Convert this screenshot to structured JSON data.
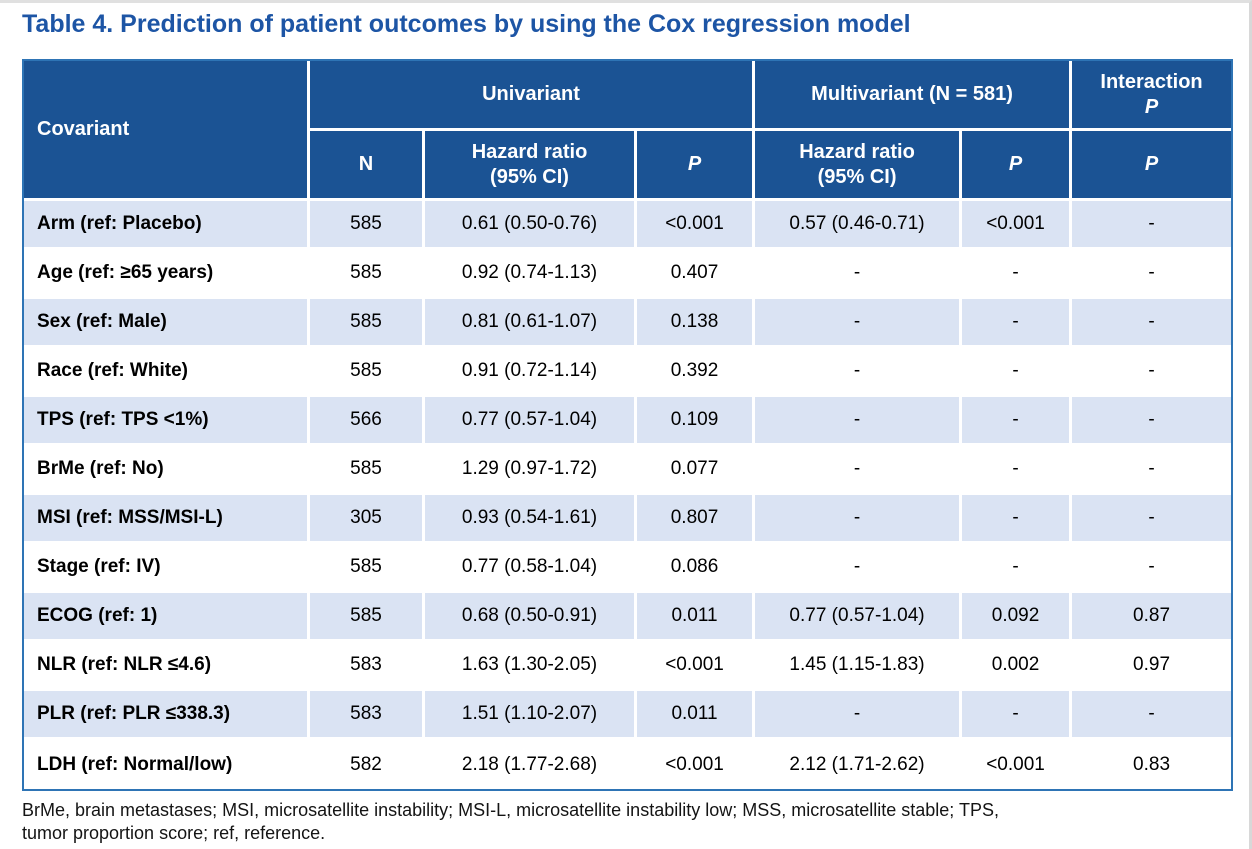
{
  "title": "Table 4. Prediction of patient outcomes by using the Cox regression model",
  "colors": {
    "header_background": "#1b5394",
    "table_border": "#2e74b5",
    "alt_row_background": "#dae3f3",
    "title_text": "#1d55a5",
    "header_text": "#ffffff",
    "body_text": "#000000"
  },
  "table": {
    "header": {
      "covariant": "Covariant",
      "univariant": "Univariant",
      "multivariant": "Multivariant (N = 581)",
      "interaction_line1": "Interaction",
      "interaction_p": "P",
      "sub": {
        "n": "N",
        "hazard_ratio": "Hazard ratio\n(95% CI)",
        "p": "P"
      }
    },
    "rows": [
      {
        "covariant": "Arm (ref: Placebo)",
        "n": "585",
        "uni_hr": "0.61 (0.50-0.76)",
        "uni_p": "<0.001",
        "multi_hr": "0.57 (0.46-0.71)",
        "multi_p": "<0.001",
        "int_p": "-"
      },
      {
        "covariant": "Age (ref: ≥65 years)",
        "n": "585",
        "uni_hr": "0.92 (0.74-1.13)",
        "uni_p": "0.407",
        "multi_hr": "-",
        "multi_p": "-",
        "int_p": "-"
      },
      {
        "covariant": "Sex (ref: Male)",
        "n": "585",
        "uni_hr": "0.81 (0.61-1.07)",
        "uni_p": "0.138",
        "multi_hr": "-",
        "multi_p": "-",
        "int_p": "-"
      },
      {
        "covariant": "Race (ref: White)",
        "n": "585",
        "uni_hr": "0.91 (0.72-1.14)",
        "uni_p": "0.392",
        "multi_hr": "-",
        "multi_p": "-",
        "int_p": "-"
      },
      {
        "covariant": "TPS (ref: TPS <1%)",
        "n": "566",
        "uni_hr": "0.77 (0.57-1.04)",
        "uni_p": "0.109",
        "multi_hr": "-",
        "multi_p": "-",
        "int_p": "-"
      },
      {
        "covariant": "BrMe (ref: No)",
        "n": "585",
        "uni_hr": "1.29 (0.97-1.72)",
        "uni_p": "0.077",
        "multi_hr": "-",
        "multi_p": "-",
        "int_p": "-"
      },
      {
        "covariant": "MSI (ref: MSS/MSI-L)",
        "n": "305",
        "uni_hr": "0.93 (0.54-1.61)",
        "uni_p": "0.807",
        "multi_hr": "-",
        "multi_p": "-",
        "int_p": "-"
      },
      {
        "covariant": "Stage (ref: IV)",
        "n": "585",
        "uni_hr": "0.77 (0.58-1.04)",
        "uni_p": "0.086",
        "multi_hr": "-",
        "multi_p": "-",
        "int_p": "-"
      },
      {
        "covariant": "ECOG (ref: 1)",
        "n": "585",
        "uni_hr": "0.68 (0.50-0.91)",
        "uni_p": "0.011",
        "multi_hr": "0.77 (0.57-1.04)",
        "multi_p": "0.092",
        "int_p": "0.87"
      },
      {
        "covariant": "NLR (ref: NLR ≤4.6)",
        "n": "583",
        "uni_hr": "1.63 (1.30-2.05)",
        "uni_p": "<0.001",
        "multi_hr": "1.45 (1.15-1.83)",
        "multi_p": "0.002",
        "int_p": "0.97"
      },
      {
        "covariant": "PLR (ref: PLR ≤338.3)",
        "n": "583",
        "uni_hr": "1.51 (1.10-2.07)",
        "uni_p": "0.011",
        "multi_hr": "-",
        "multi_p": "-",
        "int_p": "-"
      },
      {
        "covariant": "LDH (ref: Normal/low)",
        "n": "582",
        "uni_hr": "2.18 (1.77-2.68)",
        "uni_p": "<0.001",
        "multi_hr": "2.12 (1.71-2.62)",
        "multi_p": "<0.001",
        "int_p": "0.83"
      }
    ]
  },
  "footnote": {
    "line1": "BrMe, brain metastases; MSI, microsatellite instability; MSI-L, microsatellite instability low; MSS, microsatellite stable; TPS,",
    "line2": "tumor proportion score; ref, reference."
  }
}
